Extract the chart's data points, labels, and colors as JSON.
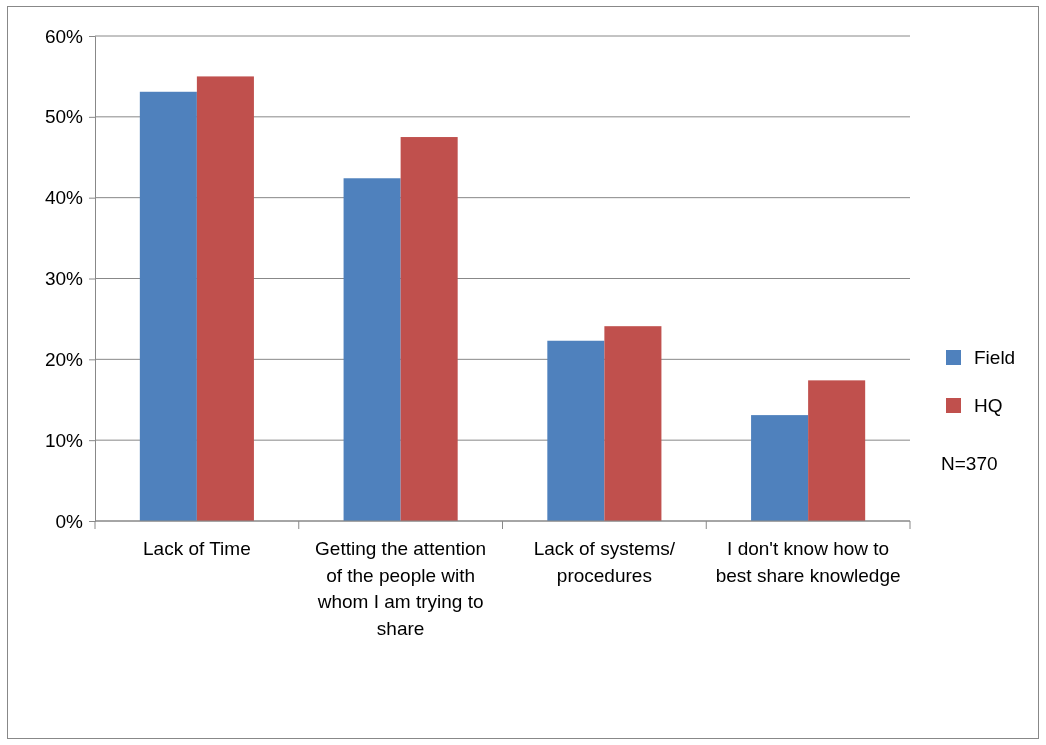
{
  "chart_data": {
    "type": "bar",
    "categories": [
      "Lack of Time",
      "Getting the attention of the people with whom I am trying to share",
      "Lack of systems/ procedures",
      "I don't know how to best share knowledge"
    ],
    "series": [
      {
        "name": "Field",
        "color": "#4f81bd",
        "values": [
          53.1,
          42.4,
          22.3,
          13.1
        ]
      },
      {
        "name": "HQ",
        "color": "#c0504d",
        "values": [
          55,
          47.5,
          24.1,
          17.4
        ]
      }
    ],
    "ylim": [
      0,
      60
    ],
    "yticks": [
      {
        "value": 0,
        "label": "0%"
      },
      {
        "value": 10,
        "label": "10%"
      },
      {
        "value": 20,
        "label": "20%"
      },
      {
        "value": 30,
        "label": "30%"
      },
      {
        "value": 40,
        "label": "40%"
      },
      {
        "value": 50,
        "label": "50%"
      },
      {
        "value": 60,
        "label": "60%"
      }
    ],
    "grid": "y",
    "legend": "right",
    "annotations": [
      "N=370"
    ]
  }
}
